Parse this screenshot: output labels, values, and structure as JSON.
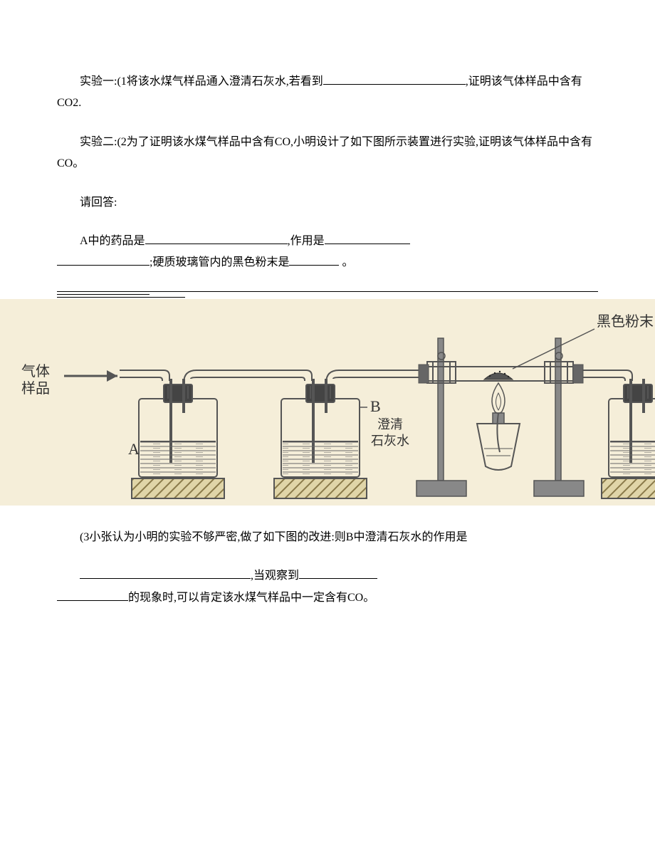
{
  "para1_a": "实验一:(1将该水煤气样品通入澄清石灰水,若看到",
  "para1_b": ",证明该气体样品中含有CO2.",
  "para2": "实验二:(2为了证明该水煤气样品中含有CO,小明设计了如下图所示装置进行实验,证明该气体样品中含有CO。",
  "para3": "请回答:",
  "para4_a": "A中的药品是",
  "para4_b": ",作用是",
  "para4_c": ";硬质玻璃管内的黑色粉末是",
  "para4_d": " 。",
  "para5": "(3小张认为小明的实验不够严密,做了如下图的改进:则B中澄清石灰水的作用是",
  "para6_a": ",当观察到",
  "para6_b": "的现象时,可以肯定该水煤气样品中一定含有CO。",
  "diagram": {
    "gas_label": "气体\n样品",
    "bottle_A": "A",
    "bottle_B1": "B",
    "bottle_B2": "澄清\n石灰水",
    "powder_label": "黑色粉末",
    "colors": {
      "background": "#f5eed9",
      "stroke": "#555555",
      "fill_light": "#e8e2d0",
      "wood": "#d4c79a"
    }
  }
}
